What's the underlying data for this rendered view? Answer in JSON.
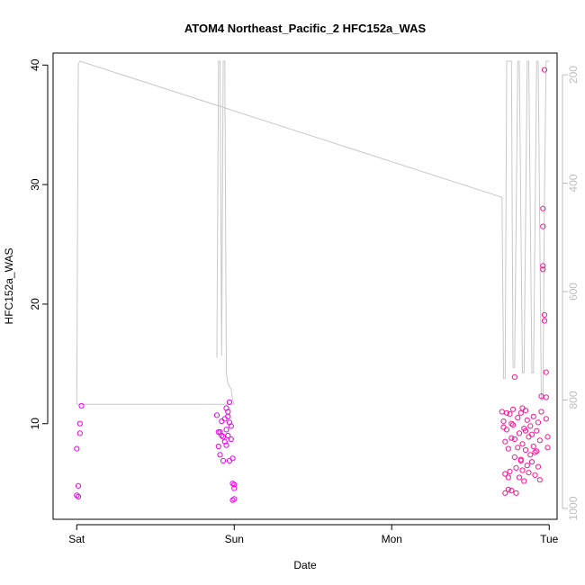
{
  "chart_data": {
    "type": "scatter",
    "title": "ATOM4 Northeast_Pacific_2 HFC152a_WAS",
    "xlabel": "Date",
    "ylabel": "HFC152a_WAS",
    "x_ticks": [
      {
        "label": "Sat",
        "value": 0
      },
      {
        "label": "Sun",
        "value": 1
      },
      {
        "label": "Mon",
        "value": 2
      },
      {
        "label": "Tue",
        "value": 3
      }
    ],
    "xlim": [
      -0.15,
      3.05
    ],
    "y_ticks": [
      10,
      20,
      30,
      40
    ],
    "ylim": [
      2,
      41
    ],
    "y2_ticks": [
      200,
      400,
      600,
      800,
      1000
    ],
    "y2lim": [
      1020,
      160
    ],
    "grid": false,
    "legend": "none",
    "colors": {
      "axis": "#000000",
      "secondary_axis": "#bebebe",
      "pressure_line": "#c8c8c8",
      "scatter_magenta": "#ee00ee",
      "scatter_pink": "#ff1493",
      "title": "#000000"
    },
    "pressure_series": [
      [
        0.0,
        808
      ],
      [
        0.01,
        180
      ],
      [
        0.02,
        175
      ],
      [
        2.7,
        426
      ],
      [
        2.71,
        760
      ],
      [
        2.72,
        760
      ],
      [
        2.73,
        175
      ],
      [
        2.76,
        175
      ],
      [
        2.77,
        740
      ],
      [
        2.78,
        740
      ],
      [
        2.8,
        175
      ],
      [
        2.81,
        175
      ],
      [
        2.83,
        750
      ],
      [
        2.84,
        750
      ],
      [
        2.86,
        175
      ],
      [
        2.87,
        175
      ],
      [
        2.89,
        750
      ],
      [
        2.9,
        750
      ],
      [
        2.92,
        175
      ],
      [
        2.93,
        175
      ],
      [
        2.95,
        800
      ],
      [
        2.96,
        800
      ],
      [
        2.97,
        420
      ],
      [
        2.98,
        175
      ],
      [
        3.0,
        175
      ],
      [
        null,
        null
      ],
      [
        0.0,
        808
      ],
      [
        1.0,
        808
      ],
      [
        null,
        null
      ],
      [
        0.89,
        722
      ],
      [
        0.9,
        175
      ],
      [
        0.91,
        175
      ],
      [
        0.92,
        718
      ],
      [
        0.93,
        175
      ],
      [
        0.94,
        175
      ],
      [
        0.95,
        750
      ],
      [
        0.96,
        770
      ],
      [
        0.98,
        780
      ],
      [
        0.99,
        800
      ],
      [
        1.0,
        808
      ]
    ],
    "points_day1": [
      [
        0.0,
        4.0
      ],
      [
        0.01,
        3.9
      ],
      [
        0.01,
        4.8
      ],
      [
        0.0,
        7.9
      ],
      [
        0.02,
        10.0
      ],
      [
        0.02,
        9.2
      ],
      [
        0.03,
        11.5
      ]
    ],
    "points_day2": [
      [
        0.89,
        10.7
      ],
      [
        0.9,
        9.3
      ],
      [
        0.9,
        8.1
      ],
      [
        0.91,
        7.4
      ],
      [
        0.92,
        9.0
      ],
      [
        0.92,
        10.2
      ],
      [
        0.93,
        6.9
      ],
      [
        0.94,
        8.5
      ],
      [
        0.94,
        10.4
      ],
      [
        0.95,
        9.5
      ],
      [
        0.95,
        8.2
      ],
      [
        0.96,
        11.0
      ],
      [
        0.96,
        9.0
      ],
      [
        0.97,
        10.1
      ],
      [
        0.97,
        11.8
      ],
      [
        0.98,
        8.7
      ],
      [
        0.98,
        9.8
      ],
      [
        0.99,
        7.1
      ],
      [
        0.99,
        5.0
      ],
      [
        1.0,
        4.6
      ],
      [
        0.99,
        3.6
      ],
      [
        1.0,
        3.7
      ],
      [
        0.97,
        6.9
      ],
      [
        0.91,
        9.3
      ],
      [
        0.93,
        8.9
      ],
      [
        0.95,
        11.3
      ],
      [
        0.96,
        10.6
      ],
      [
        1.0,
        4.9
      ]
    ],
    "points_day4": [
      [
        2.7,
        11.0
      ],
      [
        2.71,
        10.2
      ],
      [
        2.71,
        9.7
      ],
      [
        2.72,
        8.5
      ],
      [
        2.72,
        5.8
      ],
      [
        2.72,
        4.2
      ],
      [
        2.73,
        10.9
      ],
      [
        2.73,
        9.5
      ],
      [
        2.74,
        7.9
      ],
      [
        2.74,
        5.5
      ],
      [
        2.75,
        10.8
      ],
      [
        2.75,
        6.0
      ],
      [
        2.76,
        4.4
      ],
      [
        2.76,
        8.8
      ],
      [
        2.77,
        11.2
      ],
      [
        2.77,
        9.9
      ],
      [
        2.78,
        13.9
      ],
      [
        2.78,
        7.2
      ],
      [
        2.79,
        6.3
      ],
      [
        2.8,
        10.5
      ],
      [
        2.8,
        8.0
      ],
      [
        2.81,
        5.5
      ],
      [
        2.81,
        9.2
      ],
      [
        2.82,
        7.0
      ],
      [
        2.82,
        10.9
      ],
      [
        2.83,
        8.3
      ],
      [
        2.83,
        6.1
      ],
      [
        2.84,
        5.2
      ],
      [
        2.84,
        9.6
      ],
      [
        2.85,
        11.1
      ],
      [
        2.85,
        7.8
      ],
      [
        2.86,
        6.5
      ],
      [
        2.86,
        10.3
      ],
      [
        2.87,
        8.9
      ],
      [
        2.87,
        5.9
      ],
      [
        2.88,
        7.4
      ],
      [
        2.88,
        9.8
      ],
      [
        2.89,
        6.8
      ],
      [
        2.9,
        10.6
      ],
      [
        2.9,
        8.1
      ],
      [
        2.91,
        5.7
      ],
      [
        2.91,
        7.6
      ],
      [
        2.92,
        9.4
      ],
      [
        2.93,
        6.4
      ],
      [
        2.93,
        10.1
      ],
      [
        2.94,
        8.6
      ],
      [
        2.94,
        5.3
      ],
      [
        2.95,
        12.3
      ],
      [
        2.95,
        11.0
      ],
      [
        2.96,
        28.0
      ],
      [
        2.96,
        26.5
      ],
      [
        2.96,
        23.2
      ],
      [
        2.96,
        22.9
      ],
      [
        2.97,
        18.6
      ],
      [
        2.97,
        19.1
      ],
      [
        2.97,
        39.6
      ],
      [
        2.98,
        14.3
      ],
      [
        2.98,
        12.2
      ],
      [
        2.98,
        10.4
      ],
      [
        2.99,
        8.9
      ],
      [
        2.99,
        8.0
      ],
      [
        2.74,
        4.5
      ],
      [
        2.79,
        4.2
      ],
      [
        2.76,
        10.0
      ],
      [
        2.82,
        6.9
      ],
      [
        2.89,
        9.1
      ],
      [
        2.92,
        7.7
      ],
      [
        2.85,
        9.4
      ],
      [
        2.78,
        8.7
      ],
      [
        2.83,
        11.3
      ]
    ]
  }
}
